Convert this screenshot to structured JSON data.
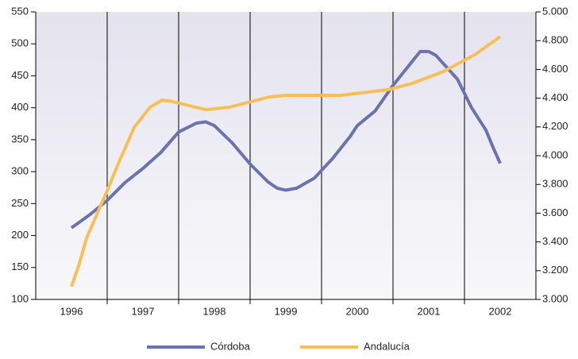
{
  "chart_data": {
    "type": "line",
    "xlim": [
      1995.5,
      2002.5
    ],
    "xticks": [
      1996,
      1997,
      1998,
      1999,
      2000,
      2001,
      2002
    ],
    "ylim": [
      100,
      550
    ],
    "yticks": [
      100,
      150,
      200,
      250,
      300,
      350,
      400,
      450,
      500,
      550
    ],
    "y2lim": [
      3000,
      5000
    ],
    "y2ticks": [
      {
        "value": 3000,
        "label": "3.000"
      },
      {
        "value": 3200,
        "label": "3.200"
      },
      {
        "value": 3400,
        "label": "3.400"
      },
      {
        "value": 3600,
        "label": "3.600"
      },
      {
        "value": 3800,
        "label": "3.800"
      },
      {
        "value": 4000,
        "label": "4.000"
      },
      {
        "value": 4200,
        "label": "4.200"
      },
      {
        "value": 4400,
        "label": "4.400"
      },
      {
        "value": 4600,
        "label": "4.600"
      },
      {
        "value": 4800,
        "label": "4.800"
      },
      {
        "value": 5000,
        "label": "5.000"
      }
    ],
    "legend": "bottom",
    "series": [
      {
        "name": "Córdoba",
        "color": "#6b72b0",
        "axis": "y",
        "x": [
          1996,
          1996.25,
          1996.5,
          1996.75,
          1997,
          1997.25,
          1997.5,
          1997.75,
          1997.88,
          1998,
          1998.25,
          1998.5,
          1998.75,
          1998.88,
          1999,
          1999.15,
          1999.4,
          1999.65,
          1999.9,
          2000,
          2000.25,
          2000.5,
          2000.75,
          2000.88,
          2001,
          2001.1,
          2001.4,
          2001.6,
          2001.8,
          2001.9,
          2002
        ],
        "values": [
          212,
          232,
          255,
          283,
          305,
          330,
          362,
          376,
          378,
          372,
          345,
          312,
          284,
          274,
          271,
          274,
          290,
          320,
          355,
          372,
          395,
          435,
          470,
          488,
          488,
          482,
          445,
          400,
          365,
          338,
          313
        ]
      },
      {
        "name": "Andalucía",
        "color": "#f7bf55",
        "axis": "y2",
        "x": [
          1996,
          1996.1,
          1996.21,
          1996.5,
          1996.66,
          1996.88,
          1997.1,
          1997.27,
          1997.38,
          1997.88,
          1998.21,
          1998.77,
          1999,
          1999.77,
          2000.43,
          2000.77,
          2001.21,
          2001.66,
          2002
        ],
        "values": [
          3090,
          3232,
          3425,
          3757,
          3950,
          4199,
          4337,
          4386,
          4380,
          4320,
          4337,
          4409,
          4420,
          4420,
          4459,
          4503,
          4586,
          4707,
          4829
        ]
      }
    ]
  }
}
